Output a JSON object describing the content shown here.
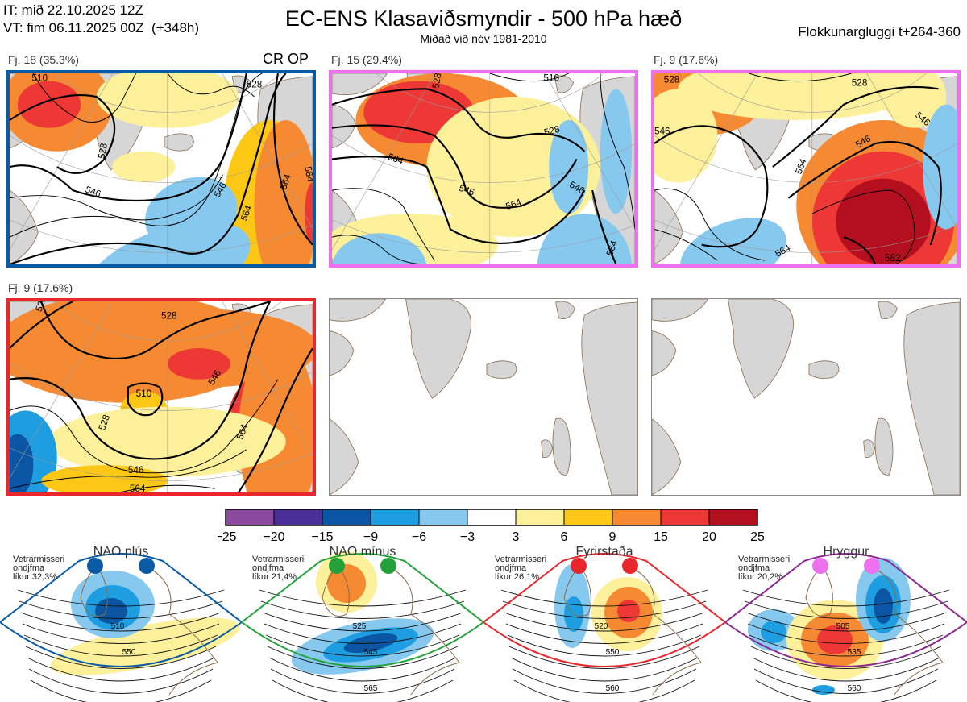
{
  "header": {
    "line1": "IT: mið 22.10.2025 12Z",
    "line2": "VT: fim 06.11.2025 00Z  (+348h)",
    "title": "EC-ENS Klasaviðsmyndir - 500 hPa hæð",
    "subtitle": "Miðað við nóv 1981-2010",
    "window": "Flokkunargluggi t+264-360"
  },
  "op_label": "CR OP",
  "colors": {
    "blue_frame": "#0a5aa6",
    "pink_frame": "#ee6ff0",
    "red_frame": "#e8262b",
    "green_frame": "#23a23a",
    "purple_frame": "#8a2a8e",
    "land": "#d6d6d6",
    "coast": "#8a6a4a"
  },
  "panels": [
    {
      "label": "Fj. 18 (35.3%)",
      "frame": "#0a5aa6",
      "contours": [
        "510",
        "528",
        "546",
        "564",
        "546",
        "528",
        "564",
        "564"
      ]
    },
    {
      "label": "Fj. 15 (29.4%)",
      "frame": "#ee6ff0",
      "contours": [
        "510",
        "528",
        "546",
        "564",
        "528",
        "546",
        "564",
        "564"
      ]
    },
    {
      "label": "Fj. 9 (17.6%)",
      "frame": "#ee6ff0",
      "contours": [
        "528",
        "546",
        "528",
        "546",
        "564",
        "546",
        "564",
        "582"
      ]
    },
    {
      "label": "Fj. 9 (17.6%)",
      "frame": "#e8262b",
      "contours": [
        "528",
        "528",
        "510",
        "546",
        "528",
        "546",
        "564",
        "564"
      ]
    }
  ],
  "chart_data": {
    "type": "heatmap",
    "title": "EC-ENS Klasaviðsmyndir - 500 hPa hæð",
    "variable": "500 hPa height anomaly",
    "colorbar": {
      "ticks": [
        "−25",
        "−20",
        "−15",
        "−9",
        "−6",
        "−3",
        "3",
        "6",
        "9",
        "15",
        "20",
        "25"
      ],
      "bounds": [
        -25,
        -20,
        -15,
        -9,
        -6,
        -3,
        3,
        6,
        9,
        15,
        20,
        25
      ],
      "colors": [
        "#8a4a9e",
        "#4a2f98",
        "#0a56a4",
        "#1e9ee0",
        "#86c8ee",
        "#ffffff",
        "#fdf09a",
        "#fdc815",
        "#f68a32",
        "#ee3835",
        "#b30f1e"
      ]
    },
    "clusters": [
      {
        "name": "Fj. 18",
        "share_percent": 35.3,
        "regime": "NAO plús"
      },
      {
        "name": "Fj. 15",
        "share_percent": 29.4,
        "regime": "Hryggur"
      },
      {
        "name": "Fj. 9",
        "share_percent": 17.6,
        "regime": "Hryggur"
      },
      {
        "name": "Fj. 9",
        "share_percent": 17.6,
        "regime": "Fyrirstaða"
      }
    ],
    "regimes": [
      {
        "name": "NAO plús",
        "note": "Vetrarmisseri\nondjfma\nlíkur 32,3%",
        "probability_percent": 32.3,
        "color": "#0a5aa6",
        "dots": [
          "#0a5aa6",
          "#0a5aa6"
        ],
        "contours": [
          "510",
          "550"
        ]
      },
      {
        "name": "NAO mínus",
        "note": "Vetrarmisseri\nondjfma\nlíkur 21,4%",
        "probability_percent": 21.4,
        "color": "#23a23a",
        "dots": [
          "#23a23a",
          "#23a23a"
        ],
        "contours": [
          "525",
          "545",
          "565"
        ]
      },
      {
        "name": "Fyrirstaða",
        "note": "Vetrarmisseri\nondjfma\nlíkur 26,1%",
        "probability_percent": 26.1,
        "color": "#e8262b",
        "dots": [
          "#e8262b",
          "#e8262b"
        ],
        "contours": [
          "520",
          "550",
          "560"
        ]
      },
      {
        "name": "Hryggur",
        "note": "Vetrarmisseri\nondjfma\nlíkur 20,2%",
        "probability_percent": 20.2,
        "color": "#8a2a8e",
        "dots": [
          "#ee6ff0",
          "#ee6ff0"
        ],
        "contours": [
          "505",
          "535",
          "560"
        ]
      }
    ]
  }
}
